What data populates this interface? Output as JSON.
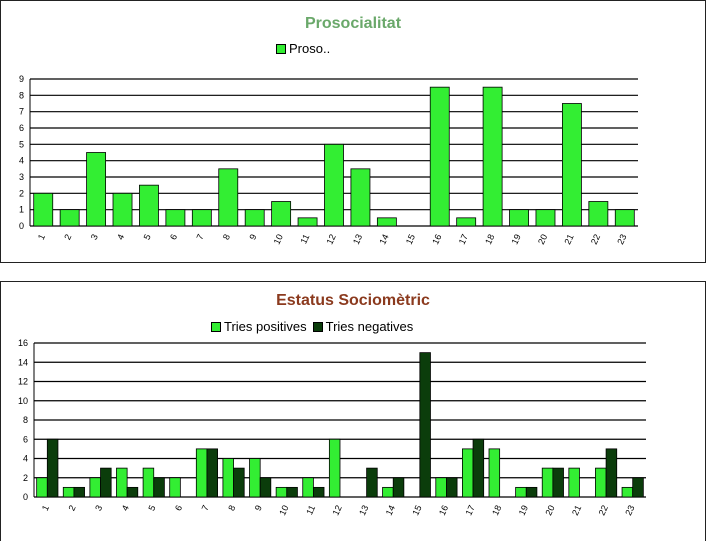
{
  "chart_data": [
    {
      "type": "bar",
      "title": "Prosocialitat",
      "categories": [
        "1",
        "2",
        "3",
        "4",
        "5",
        "6",
        "7",
        "8",
        "9",
        "10",
        "11",
        "12",
        "13",
        "14",
        "15",
        "16",
        "17",
        "18",
        "19",
        "20",
        "21",
        "22",
        "23"
      ],
      "series": [
        {
          "name": "Proso..",
          "color": "#33ee33",
          "values": [
            2,
            1,
            4.5,
            2,
            2.5,
            1,
            1,
            3.5,
            1,
            1.5,
            0.5,
            5,
            3.5,
            0.5,
            0,
            8.5,
            0.5,
            8.5,
            1,
            1,
            7.5,
            1.5,
            1
          ]
        }
      ],
      "ylim": [
        0,
        9
      ],
      "yticks": [
        0,
        1,
        2,
        3,
        4,
        5,
        6,
        7,
        8,
        9
      ],
      "grid": true,
      "legend": "top"
    },
    {
      "type": "bar",
      "title": "Estatus Sociomètric",
      "categories": [
        "1",
        "2",
        "3",
        "4",
        "5",
        "6",
        "7",
        "8",
        "9",
        "10",
        "11",
        "12",
        "13",
        "14",
        "15",
        "16",
        "17",
        "18",
        "19",
        "20",
        "21",
        "22",
        "23"
      ],
      "series": [
        {
          "name": "Tries positives",
          "color": "#33ee33",
          "values": [
            2,
            1,
            2,
            3,
            3,
            2,
            5,
            4,
            4,
            1,
            2,
            6,
            0,
            1,
            0,
            2,
            5,
            5,
            1,
            3,
            3,
            3,
            1
          ]
        },
        {
          "name": "Tries negatives",
          "color": "#0b3d0b",
          "values": [
            6,
            1,
            3,
            1,
            2,
            0,
            5,
            3,
            2,
            1,
            1,
            0,
            3,
            2,
            15,
            2,
            6,
            0,
            1,
            3,
            0,
            5,
            2
          ]
        }
      ],
      "ylim": [
        0,
        16
      ],
      "yticks": [
        0,
        2,
        4,
        6,
        8,
        10,
        12,
        14,
        16
      ],
      "grid": true,
      "legend": "top"
    }
  ]
}
